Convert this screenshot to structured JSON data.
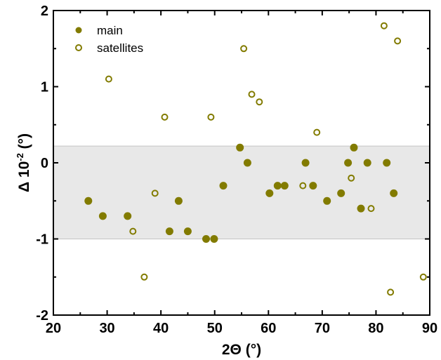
{
  "chart_data": {
    "type": "scatter",
    "title": "",
    "xlabel": "2Θ (°)",
    "ylabel_prefix": "Δ 10",
    "ylabel_sup": "-2",
    "ylabel_suffix": " (°)",
    "xlim": [
      20,
      90
    ],
    "ylim": [
      -2,
      2
    ],
    "xticks": [
      "20",
      "30",
      "40",
      "50",
      "60",
      "70",
      "80",
      "90"
    ],
    "yticks": [
      "2",
      "1",
      "0",
      "-1",
      "-2"
    ],
    "band": {
      "from": -1,
      "to": 0.22,
      "color": "#e8e8e8"
    },
    "grid": false,
    "legend_position": "top-left",
    "color": "#827b00",
    "series": [
      {
        "name": "main",
        "marker": "filled-circle",
        "points": [
          [
            26.5,
            -0.5
          ],
          [
            29.2,
            -0.7
          ],
          [
            33.8,
            -0.7
          ],
          [
            41.6,
            -0.9
          ],
          [
            43.3,
            -0.5
          ],
          [
            45.0,
            -0.9
          ],
          [
            48.4,
            -1.0
          ],
          [
            49.9,
            -1.0
          ],
          [
            51.6,
            -0.3
          ],
          [
            54.7,
            0.2
          ],
          [
            56.1,
            0.0
          ],
          [
            60.2,
            -0.4
          ],
          [
            61.7,
            -0.3
          ],
          [
            63.0,
            -0.3
          ],
          [
            66.9,
            0.0
          ],
          [
            68.3,
            -0.3
          ],
          [
            70.9,
            -0.5
          ],
          [
            73.5,
            -0.4
          ],
          [
            74.8,
            0.0
          ],
          [
            75.9,
            0.2
          ],
          [
            77.2,
            -0.6
          ],
          [
            78.4,
            0.0
          ],
          [
            82.0,
            0.0
          ],
          [
            83.3,
            -0.4
          ]
        ]
      },
      {
        "name": "satellites",
        "marker": "open-circle",
        "points": [
          [
            30.3,
            1.1
          ],
          [
            34.8,
            -0.9
          ],
          [
            36.9,
            -1.5
          ],
          [
            38.9,
            -0.4
          ],
          [
            40.7,
            0.6
          ],
          [
            49.3,
            0.6
          ],
          [
            55.4,
            1.5
          ],
          [
            56.9,
            0.9
          ],
          [
            58.3,
            0.8
          ],
          [
            66.4,
            -0.3
          ],
          [
            69.0,
            0.4
          ],
          [
            75.4,
            -0.2
          ],
          [
            79.1,
            -0.6
          ],
          [
            81.5,
            1.8
          ],
          [
            82.7,
            -1.7
          ],
          [
            84.0,
            1.6
          ],
          [
            88.8,
            -1.5
          ]
        ]
      }
    ]
  }
}
